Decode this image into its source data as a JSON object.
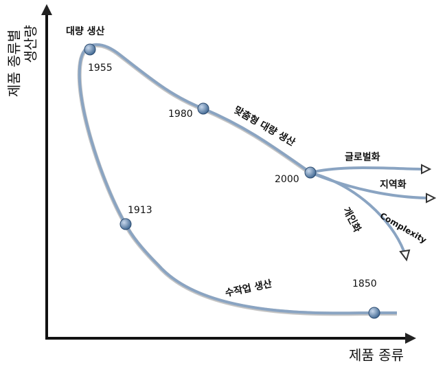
{
  "axes": {
    "y_label": [
      "제품 종류별",
      "생산량"
    ],
    "x_label": "제품 종류"
  },
  "nodes": [
    {
      "label": "1955"
    },
    {
      "label": "1980"
    },
    {
      "label": "2000"
    },
    {
      "label": "1913"
    },
    {
      "label": "1850"
    }
  ],
  "curve_labels": {
    "mass": "대량 생산",
    "mass_custom": "맞춤형 대량 생산",
    "global": "글로벌화",
    "regional": "지역화",
    "personal": "개인화",
    "complexity": "Complexity",
    "craft": "수작업 생산"
  }
}
